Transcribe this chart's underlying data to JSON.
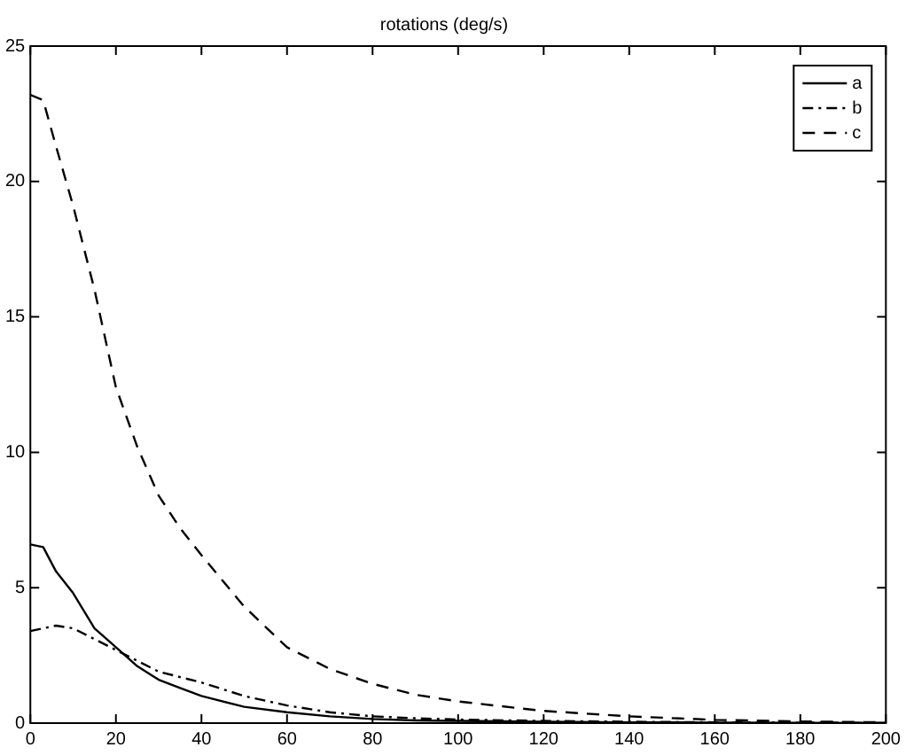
{
  "chart_data": {
    "type": "line",
    "title": "rotations (deg/s)",
    "x": [
      0,
      3,
      6,
      10,
      15,
      20,
      25,
      30,
      35,
      40,
      50,
      60,
      70,
      80,
      90,
      100,
      120,
      140,
      160,
      180,
      200
    ],
    "series": [
      {
        "name": "a",
        "color": "#000000",
        "line_style": "solid",
        "values": [
          6.6,
          6.5,
          5.6,
          4.8,
          3.5,
          2.8,
          2.1,
          1.6,
          1.3,
          1.0,
          0.6,
          0.4,
          0.25,
          0.15,
          0.1,
          0.08,
          0.05,
          0.03,
          0.02,
          0.01,
          0
        ]
      },
      {
        "name": "b",
        "color": "#000000",
        "line_style": "dotted",
        "values": [
          3.4,
          3.5,
          3.6,
          3.5,
          3.1,
          2.7,
          2.3,
          1.9,
          1.7,
          1.5,
          1.0,
          0.65,
          0.4,
          0.25,
          0.18,
          0.13,
          0.08,
          0.05,
          0.03,
          0.02,
          0.01
        ]
      },
      {
        "name": "c",
        "color": "#000000",
        "line_style": "dashed",
        "values": [
          23.2,
          23,
          21.3,
          19.1,
          16,
          12.4,
          10.2,
          8.4,
          7.2,
          6.2,
          4.3,
          2.8,
          2,
          1.45,
          1.05,
          0.8,
          0.45,
          0.25,
          0.12,
          0.06,
          0.03
        ]
      }
    ],
    "xlim": [
      0,
      200
    ],
    "xticks": [
      0,
      20,
      40,
      60,
      80,
      100,
      120,
      140,
      160,
      180,
      200
    ],
    "ylim": [
      0,
      25
    ],
    "yticks": [
      0,
      5,
      10,
      15,
      20,
      25
    ],
    "grid": false,
    "legend": "top right",
    "marker": "none"
  }
}
